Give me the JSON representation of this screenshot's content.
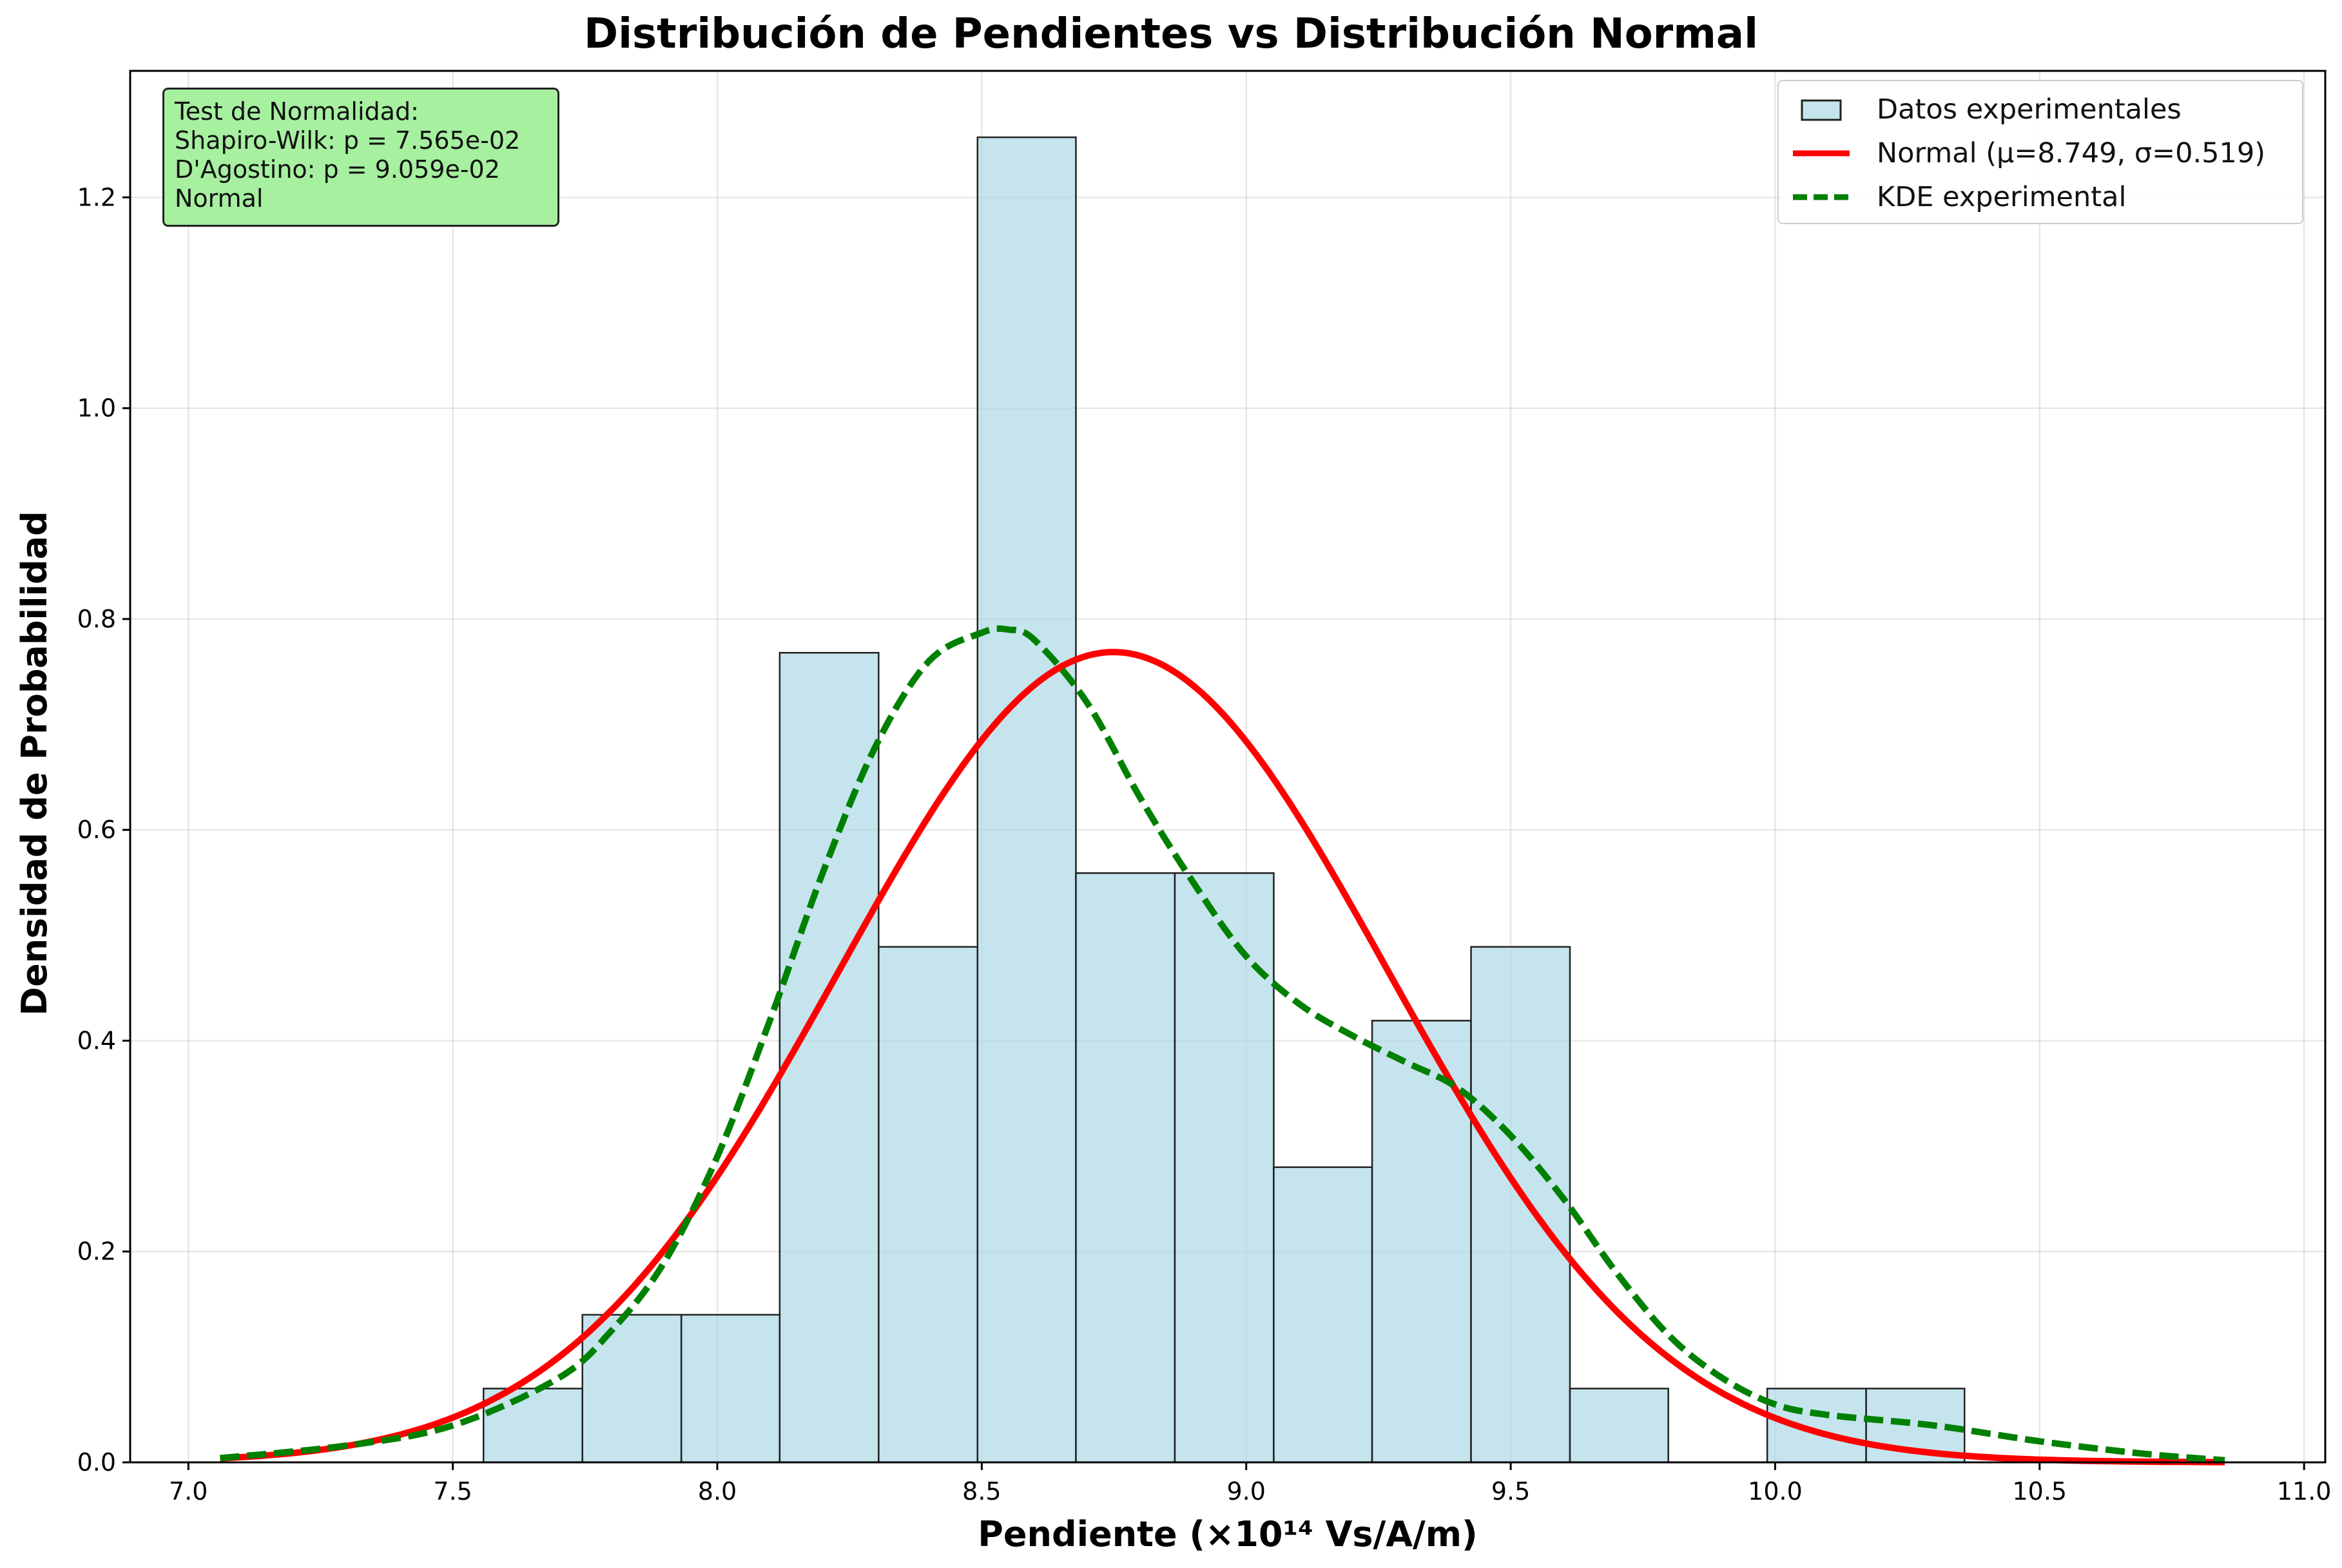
{
  "chart_data": {
    "type": "bar",
    "title": "Distribución de Pendientes vs Distribución Normal",
    "xlabel": "Pendiente (×10¹⁴ Vs/A/m)",
    "ylabel": "Densidad de Probabilidad",
    "xlim": [
      6.89,
      11.04
    ],
    "ylim": [
      0,
      1.32
    ],
    "xticks": [
      7.0,
      7.5,
      8.0,
      8.5,
      9.0,
      9.5,
      10.0,
      10.5,
      11.0
    ],
    "xtick_labels": [
      "7.0",
      "7.5",
      "8.0",
      "8.5",
      "9.0",
      "9.5",
      "10.0",
      "10.5",
      "11.0"
    ],
    "yticks": [
      0.0,
      0.2,
      0.4,
      0.6,
      0.8,
      1.0,
      1.2
    ],
    "ytick_labels": [
      "0.0",
      "0.2",
      "0.4",
      "0.6",
      "0.8",
      "1.0",
      "1.2"
    ],
    "grid": true,
    "legend_position": "top-right",
    "histogram": {
      "name": "Datos experimentales",
      "color": "#add8e6",
      "edge_color": "#222222",
      "bin_edges": [
        7.558,
        7.745,
        7.932,
        8.118,
        8.305,
        8.492,
        8.678,
        8.865,
        9.052,
        9.238,
        9.425,
        9.612,
        9.798,
        9.985,
        10.172,
        10.358
      ],
      "densities": [
        0.07,
        0.14,
        0.14,
        0.768,
        0.489,
        1.257,
        0.559,
        0.559,
        0.28,
        0.419,
        0.489,
        0.07,
        0.0,
        0.07,
        0.07
      ]
    },
    "series": [
      {
        "name": "Normal (μ=8.749, σ=0.519)",
        "type": "normal-pdf",
        "mu": 8.749,
        "sigma": 0.519,
        "x_range": [
          7.06,
          10.85
        ],
        "color": "#ff0000",
        "style": "solid"
      },
      {
        "name": "KDE experimental",
        "type": "line",
        "color": "#008000",
        "style": "dashed",
        "x": [
          7.06,
          7.3,
          7.5,
          7.7,
          7.8,
          7.9,
          8.0,
          8.1,
          8.2,
          8.3,
          8.4,
          8.5,
          8.55,
          8.6,
          8.7,
          8.8,
          8.9,
          9.0,
          9.1,
          9.2,
          9.3,
          9.4,
          9.5,
          9.6,
          9.7,
          9.8,
          9.9,
          10.0,
          10.1,
          10.3,
          10.5,
          10.7,
          10.85
        ],
        "y": [
          0.004,
          0.016,
          0.035,
          0.08,
          0.125,
          0.19,
          0.29,
          0.42,
          0.56,
          0.68,
          0.76,
          0.787,
          0.79,
          0.78,
          0.72,
          0.63,
          0.55,
          0.48,
          0.435,
          0.405,
          0.38,
          0.355,
          0.31,
          0.25,
          0.18,
          0.12,
          0.08,
          0.055,
          0.045,
          0.035,
          0.02,
          0.008,
          0.002
        ]
      }
    ],
    "stats_box": {
      "lines": [
        "Test de Normalidad:",
        "Shapiro-Wilk: p = 7.565e-02",
        "D'Agostino: p = 9.059e-02",
        "Normal"
      ],
      "background": "#a6f0a0"
    }
  },
  "legend": {
    "items": [
      "Datos experimentales",
      "Normal (μ=8.749, σ=0.519)",
      "KDE experimental"
    ]
  }
}
